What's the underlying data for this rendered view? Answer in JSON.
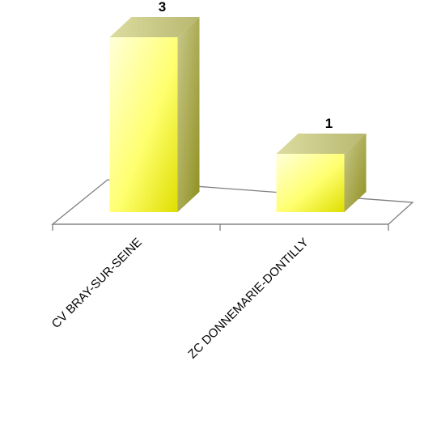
{
  "chart_data": {
    "type": "bar",
    "style": "3d-column",
    "categories": [
      "CV BRAY-SUR-SEINE",
      "ZC DONNEMARIE-DONTILLY"
    ],
    "values": [
      3,
      1
    ],
    "data_labels": [
      "3",
      "1"
    ],
    "title": "",
    "xlabel": "",
    "ylabel": "",
    "ylim": [
      0,
      3
    ],
    "grid": false,
    "legend": "none",
    "colors": {
      "bar_light": "#ffffd8",
      "bar_mid": "#ffff70",
      "bar_dark": "#dede00",
      "bar_side_light": "#c9c98c",
      "bar_side_dark": "#8f8f20",
      "floor_stroke": "#7f7f7f"
    }
  }
}
